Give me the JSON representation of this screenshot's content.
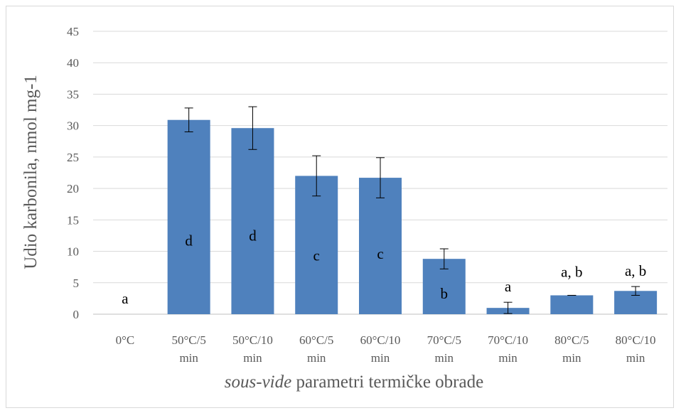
{
  "chart_data": {
    "type": "bar",
    "title": "",
    "ylabel": "Udio karbonila, nmol mg-1",
    "xlabel": {
      "italic": "sous-vide",
      "rest": " parametri termičke obrade"
    },
    "ylim": [
      0,
      45
    ],
    "yticks": [
      0,
      5,
      10,
      15,
      20,
      25,
      30,
      35,
      40,
      45
    ],
    "grid": true,
    "legend": "none",
    "bar_color": "#4f81bd",
    "categories": [
      [
        "0°C"
      ],
      [
        "50°C/5",
        "min"
      ],
      [
        "50°C/10",
        "min"
      ],
      [
        "60°C/5",
        "min"
      ],
      [
        "60°C/10",
        "min"
      ],
      [
        "70°C/5",
        "min"
      ],
      [
        "70°C/10",
        "min"
      ],
      [
        "80°C/5",
        "min"
      ],
      [
        "80°C/10",
        "min"
      ]
    ],
    "values": [
      0,
      30.9,
      29.6,
      22.0,
      21.7,
      8.8,
      1.0,
      3.0,
      3.7
    ],
    "errors": [
      0,
      1.9,
      3.4,
      3.2,
      3.2,
      1.6,
      0.9,
      0,
      0.7
    ],
    "significance_letters": [
      "a",
      "d",
      "d",
      "c",
      "c",
      "b",
      "a",
      "a, b",
      "a, b"
    ],
    "letter_values": [
      2.5,
      11.7,
      12.5,
      9.3,
      9.6,
      3.3,
      4.4,
      6.7,
      6.9
    ]
  }
}
